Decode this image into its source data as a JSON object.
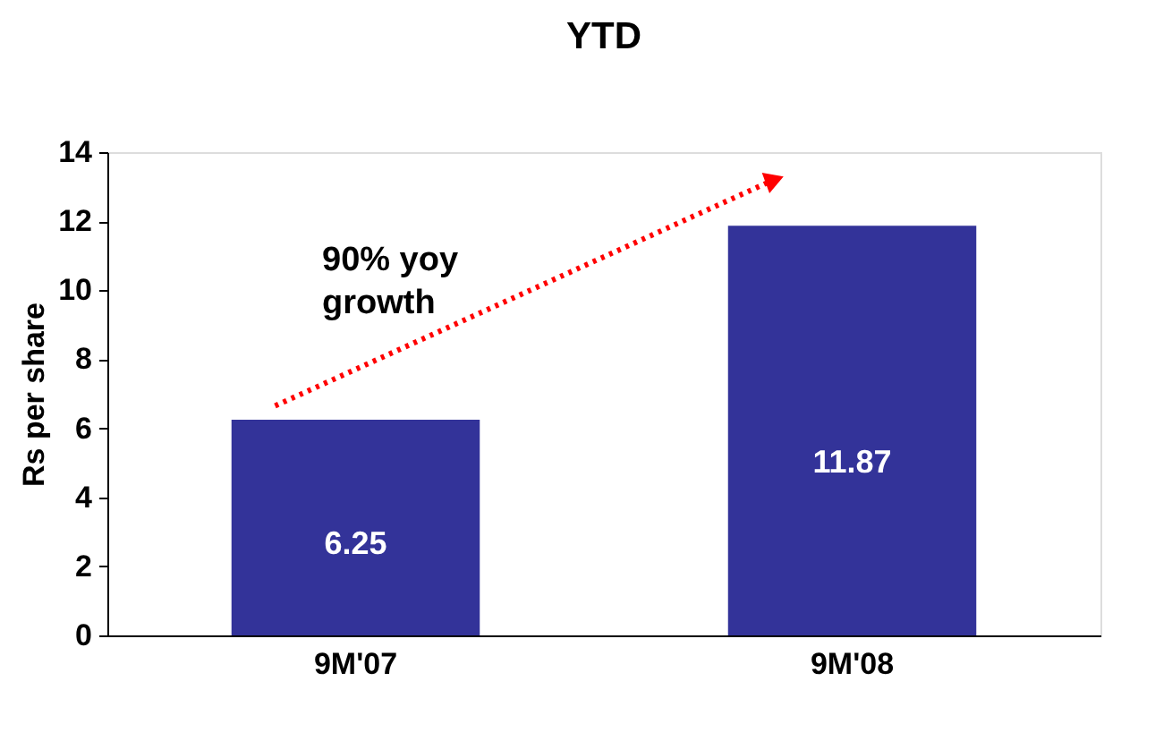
{
  "chart_data": {
    "type": "bar",
    "title": "YTD",
    "ylabel": "Rs per share",
    "categories": [
      "9M'07",
      "9M'08"
    ],
    "values": [
      6.25,
      11.87
    ],
    "color": "#333399",
    "ylim": [
      0,
      14
    ],
    "yticks": [
      0,
      2,
      4,
      6,
      8,
      10,
      12,
      14
    ],
    "grid": false,
    "data_labels": true,
    "annotations": [
      "90% yoy growth"
    ]
  }
}
